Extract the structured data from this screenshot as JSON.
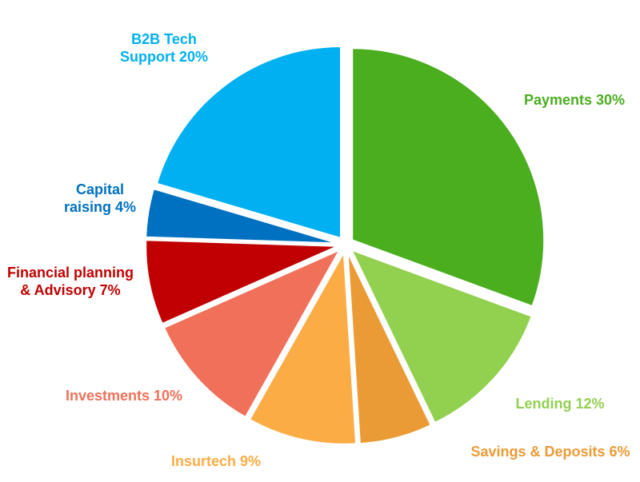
{
  "chart_data": {
    "type": "pie",
    "categories": [
      "Payments",
      "Lending",
      "Savings & Deposits",
      "Insurtech",
      "Investments",
      "Financial planning & Advisory",
      "Capital raising",
      "B2B Tech Support"
    ],
    "values": [
      30,
      12,
      6,
      9,
      10,
      7,
      4,
      20
    ],
    "value_labels": [
      "30%",
      "12%",
      "6%",
      "9%",
      "10%",
      "7%",
      "4%",
      "20%"
    ],
    "colors": [
      "#4aae1f",
      "#92d050",
      "#eb9b35",
      "#fbac45",
      "#f0705a",
      "#c00000",
      "#0070c0",
      "#00b0f0"
    ]
  }
}
